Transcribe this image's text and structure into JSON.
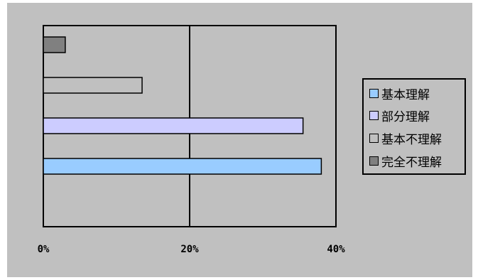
{
  "chart_data": {
    "type": "bar",
    "orientation": "horizontal",
    "series": [
      {
        "name": "基本理解",
        "value": 38,
        "color": "#99ccff"
      },
      {
        "name": "部分理解",
        "value": 35.5,
        "color": "#ccccff"
      },
      {
        "name": "基本不理解",
        "value": 13.5,
        "color": "#c0c0c0"
      },
      {
        "name": "完全不理解",
        "value": 3,
        "color": "#808080"
      }
    ],
    "xlim": [
      0,
      40
    ],
    "xticks": [
      "0%",
      "20%",
      "40%"
    ],
    "xtick_values": [
      0,
      20,
      40
    ],
    "grid": "vertical",
    "legend_position": "right",
    "plot_background": "#c0c0c0",
    "chart_background": "#c0c0c0",
    "title": "",
    "xlabel": "",
    "ylabel": ""
  }
}
